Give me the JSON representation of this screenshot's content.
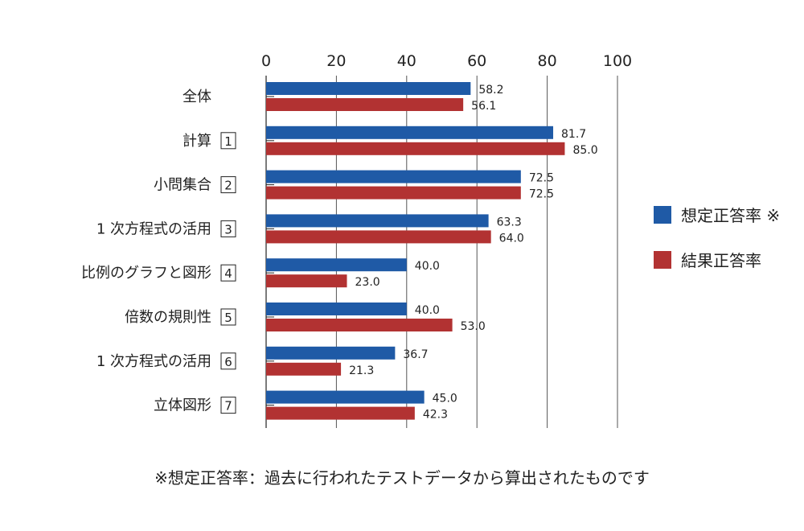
{
  "chart_data": {
    "type": "bar",
    "orientation": "horizontal",
    "categories": [
      {
        "label": "全体",
        "number": ""
      },
      {
        "label": "計算",
        "number": "1"
      },
      {
        "label": "小問集合",
        "number": "2"
      },
      {
        "label": "1 次方程式の活用",
        "number": "3"
      },
      {
        "label": "比例のグラフと図形",
        "number": "4"
      },
      {
        "label": "倍数の規則性",
        "number": "5"
      },
      {
        "label": "1 次方程式の活用",
        "number": "6"
      },
      {
        "label": "立体図形",
        "number": "7"
      }
    ],
    "series": [
      {
        "name": "想定正答率 ※",
        "color": "#1f5aa6",
        "values": [
          58.2,
          81.7,
          72.5,
          63.3,
          40.0,
          40.0,
          36.7,
          45.0
        ],
        "labels": [
          "58.2",
          "81.7",
          "72.5",
          "63.3",
          "40.0",
          "40.0",
          "36.7",
          "45.0"
        ]
      },
      {
        "name": "結果正答率",
        "color": "#b23232",
        "values": [
          56.1,
          85.0,
          72.5,
          64.0,
          23.0,
          53.0,
          21.3,
          42.3
        ],
        "labels": [
          "56.1",
          "85.0",
          "72.5",
          "64.0",
          "23.0",
          "53.0",
          "21.3",
          "42.3"
        ]
      }
    ],
    "xlim": [
      0,
      100
    ],
    "ticks": [
      0,
      20,
      40,
      60,
      80,
      100
    ],
    "tick_labels": [
      "0",
      "20",
      "40",
      "60",
      "80",
      "100"
    ],
    "grid": true,
    "legend_position": "right"
  },
  "footnote": "※想定正答率：過去に行われたテストデータから算出されたものです"
}
